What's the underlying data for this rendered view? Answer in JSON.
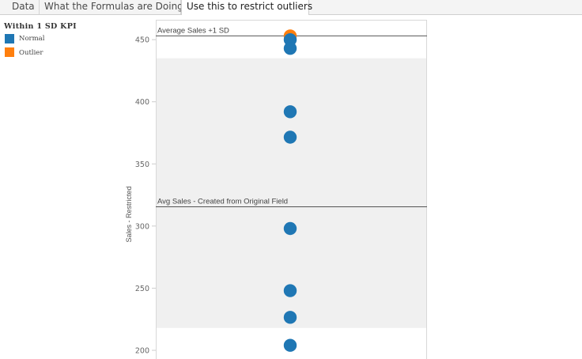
{
  "tabs": [
    {
      "label": "Data",
      "active": false
    },
    {
      "label": "What the Formulas are Doing",
      "active": false
    },
    {
      "label": "Use this to restrict outliers",
      "active": true
    }
  ],
  "legend": {
    "title": "Within 1 SD KPI",
    "items": [
      {
        "label": "Normal",
        "color": "#1f77b4"
      },
      {
        "label": "Outlier",
        "color": "#ff7f0e"
      }
    ]
  },
  "chart_data": {
    "type": "scatter",
    "ylabel": "Sales - Restricted",
    "xlabel": "",
    "yticks": [
      450,
      400,
      350,
      300,
      250,
      200
    ],
    "ylim": [
      193,
      466
    ],
    "band": {
      "from": 218,
      "to": 435,
      "color": "#f0f0f0"
    },
    "reference_lines": [
      {
        "label": "Average Sales +1 SD",
        "value": 453
      },
      {
        "label": "Avg Sales - Created from Original Field",
        "value": 315.5
      }
    ],
    "points": [
      {
        "y": 453,
        "class": "Outlier",
        "color": "#ff7f0e"
      },
      {
        "y": 450,
        "class": "Normal",
        "color": "#1f77b4"
      },
      {
        "y": 443,
        "class": "Normal",
        "color": "#1f77b4"
      },
      {
        "y": 392,
        "class": "Normal",
        "color": "#1f77b4"
      },
      {
        "y": 371.5,
        "class": "Normal",
        "color": "#1f77b4"
      },
      {
        "y": 298,
        "class": "Normal",
        "color": "#1f77b4"
      },
      {
        "y": 248,
        "class": "Normal",
        "color": "#1f77b4"
      },
      {
        "y": 226.5,
        "class": "Normal",
        "color": "#1f77b4"
      },
      {
        "y": 204,
        "class": "Normal",
        "color": "#1f77b4"
      }
    ],
    "grid": false,
    "legend_position": "top-left"
  }
}
